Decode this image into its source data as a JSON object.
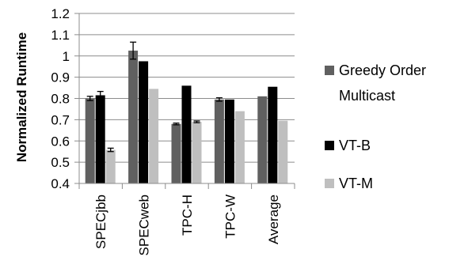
{
  "chart_data": {
    "type": "bar",
    "title": "",
    "xlabel": "",
    "ylabel": "Normalized Runtime",
    "categories": [
      "SPECjbb",
      "SPECweb",
      "TPC-H",
      "TPC-W",
      "Average"
    ],
    "ylim": [
      0.4,
      1.2
    ],
    "yticks": [
      "0.4",
      "0.5",
      "0.6",
      "0.7",
      "0.8",
      "0.9",
      "1",
      "1.1",
      "1.2"
    ],
    "grid": "horizontal",
    "legend_position": "right",
    "series": [
      {
        "name": "Greedy Order Multicast",
        "legend_lines": [
          "Greedy Order",
          "Multicast"
        ],
        "color": "#606060",
        "values": [
          0.8,
          1.025,
          0.68,
          0.795,
          0.81
        ],
        "error": [
          0.01,
          0.04,
          0.004,
          0.008,
          null
        ]
      },
      {
        "name": "VT-B",
        "legend_lines": [
          "VT-B"
        ],
        "color": "#000000",
        "values": [
          0.815,
          0.975,
          0.86,
          0.795,
          0.855
        ],
        "error": [
          0.018,
          null,
          null,
          null,
          null
        ]
      },
      {
        "name": "VT-M",
        "legend_lines": [
          "VT-M"
        ],
        "color": "#bfbfbf",
        "values": [
          0.558,
          0.845,
          0.69,
          0.74,
          0.695
        ],
        "error": [
          0.008,
          null,
          0.004,
          null,
          null
        ]
      }
    ]
  }
}
